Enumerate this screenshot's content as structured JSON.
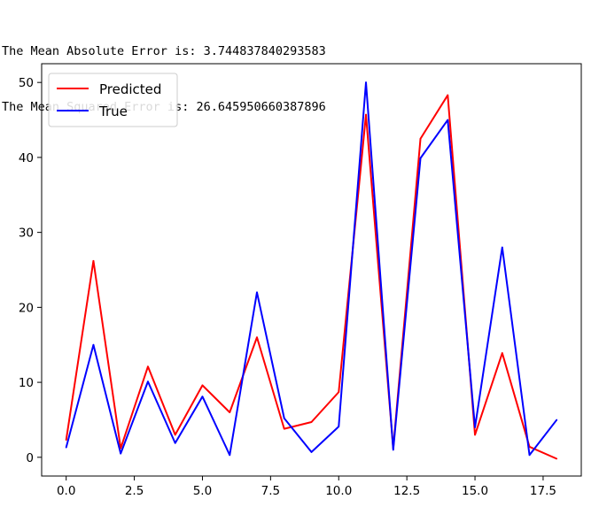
{
  "output": {
    "line1": "The Mean Absolute Error is: 3.744837840293583",
    "line2": "The Mean Squared Error is: 26.645950660387896"
  },
  "chart_data": {
    "type": "line",
    "xlim": [
      -0.9,
      18.9
    ],
    "ylim": [
      -2.5,
      52.5
    ],
    "xticks": [
      0.0,
      2.5,
      5.0,
      7.5,
      10.0,
      12.5,
      15.0,
      17.5
    ],
    "xtick_labels": [
      "0.0",
      "2.5",
      "5.0",
      "7.5",
      "10.0",
      "12.5",
      "15.0",
      "17.5"
    ],
    "yticks": [
      0,
      10,
      20,
      30,
      40,
      50
    ],
    "ytick_labels": [
      "0",
      "10",
      "20",
      "30",
      "40",
      "50"
    ],
    "legend_position": "top-left",
    "grid": false,
    "x": [
      0,
      1,
      2,
      3,
      4,
      5,
      6,
      7,
      8,
      9,
      10,
      11,
      12,
      13,
      14,
      15,
      16,
      17,
      18
    ],
    "series": [
      {
        "name": "Predicted",
        "color": "#ff0000",
        "values": [
          2.3,
          26.2,
          1.2,
          12.1,
          3.0,
          9.6,
          6.0,
          16.0,
          3.8,
          4.7,
          8.7,
          45.7,
          1.2,
          42.5,
          48.3,
          3.0,
          13.9,
          1.4,
          -0.2
        ]
      },
      {
        "name": "True",
        "color": "#0000ff",
        "values": [
          1.3,
          15.0,
          0.5,
          10.1,
          1.9,
          8.1,
          0.3,
          22.0,
          5.2,
          0.7,
          4.1,
          50.0,
          1.0,
          39.9,
          45.0,
          4.0,
          28.0,
          0.3,
          5.0
        ]
      }
    ]
  }
}
